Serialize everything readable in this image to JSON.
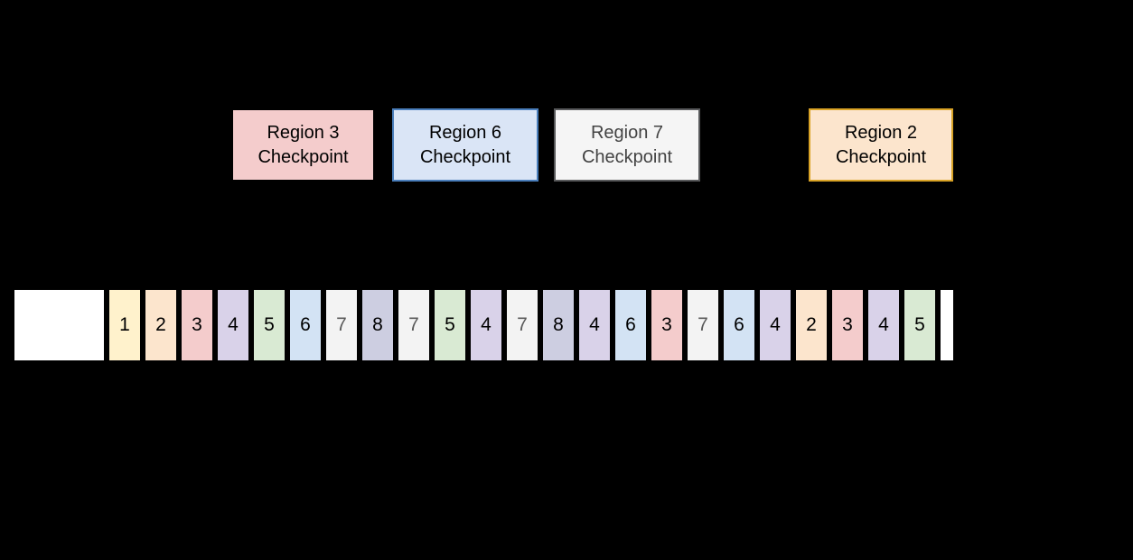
{
  "canvas": {
    "background_color": "#000000"
  },
  "checkpoints": [
    {
      "id": "region-3",
      "line1": "Region 3",
      "line2": "Checkpoint",
      "fill": "#f4cccc",
      "border": "#000000",
      "text_color": "#000000"
    },
    {
      "id": "region-6",
      "line1": "Region 6",
      "line2": "Checkpoint",
      "fill": "#dae5f6",
      "border": "#4a7ebb",
      "text_color": "#000000"
    },
    {
      "id": "region-7",
      "line1": "Region 7",
      "line2": "Checkpoint",
      "fill": "#f5f5f5",
      "border": "#58595b",
      "text_color": "#434343"
    },
    {
      "id": "region-2",
      "line1": "Region 2",
      "line2": "Checkpoint",
      "fill": "#fce5cd",
      "border": "#d9a326",
      "text_color": "#000000"
    }
  ],
  "wal": {
    "empty_block_fill": "#ffffff",
    "sequence": [
      1,
      2,
      3,
      4,
      5,
      6,
      7,
      8,
      7,
      5,
      4,
      7,
      8,
      4,
      6,
      3,
      7,
      6,
      4,
      2,
      3,
      4,
      5
    ],
    "region_styles": {
      "1": {
        "fill": "#fff2cc",
        "text_color": "#000000"
      },
      "2": {
        "fill": "#fce5cd",
        "text_color": "#000000"
      },
      "3": {
        "fill": "#f4cccc",
        "text_color": "#000000"
      },
      "4": {
        "fill": "#d9d2e9",
        "text_color": "#000000"
      },
      "5": {
        "fill": "#d9ead3",
        "text_color": "#000000"
      },
      "6": {
        "fill": "#d3e3f4",
        "text_color": "#000000"
      },
      "7": {
        "fill": "#f3f3f3",
        "text_color": "#595959"
      },
      "8": {
        "fill": "#cdcee1",
        "text_color": "#000000"
      }
    }
  }
}
